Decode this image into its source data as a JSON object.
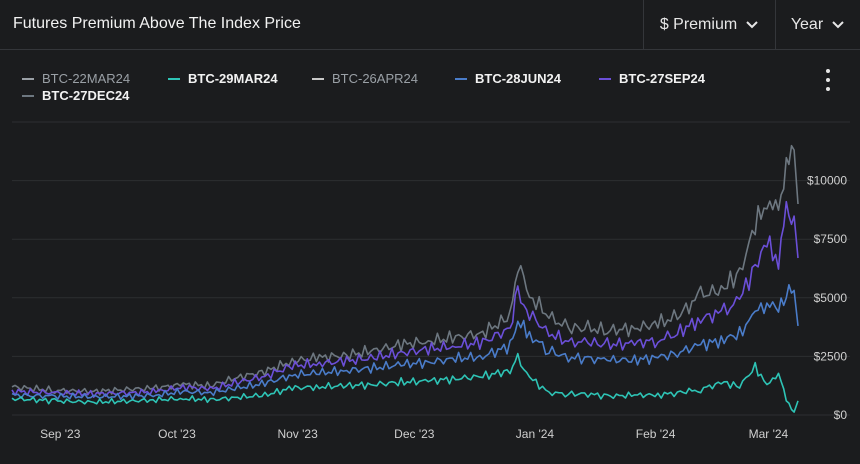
{
  "header": {
    "title": "Futures Premium Above The Index Price",
    "metric_select": "$ Premium",
    "range_select": "Year"
  },
  "legend": {
    "items": [
      {
        "label": "BTC-22MAR24",
        "color": "#9aa0a6",
        "bold": false
      },
      {
        "label": "BTC-29MAR24",
        "color": "#2ec4b6",
        "bold": true
      },
      {
        "label": "BTC-26APR24",
        "color": "#c8c8c8",
        "bold": false
      },
      {
        "label": "BTC-28JUN24",
        "color": "#4a7cc9",
        "bold": true
      },
      {
        "label": "BTC-27SEP24",
        "color": "#6b4fd8",
        "bold": true
      },
      {
        "label": "BTC-27DEC24",
        "color": "#6d7780",
        "bold": true
      }
    ]
  },
  "chart_data": {
    "type": "line",
    "x_axis": {
      "type": "date",
      "min": "2023-08-25",
      "max": "2024-03-14",
      "tick_labels": [
        "Sep '23",
        "Oct '23",
        "Nov '23",
        "Dec '23",
        "Jan '24",
        "Feb '24",
        "Mar '24"
      ],
      "tick_dates": [
        "2023-09-01",
        "2023-10-01",
        "2023-11-01",
        "2023-12-01",
        "2024-01-01",
        "2024-02-01",
        "2024-03-01"
      ]
    },
    "y_axis": {
      "min": 0,
      "max": 12500,
      "ticks": [
        0,
        2500,
        5000,
        7500,
        10000
      ],
      "tick_labels": [
        "$0",
        "$2500",
        "$5000",
        "$7500",
        "$10000"
      ],
      "position": "right",
      "grid": true
    },
    "series": [
      {
        "name": "BTC-27DEC24",
        "color": "#6d7780",
        "points": [
          [
            "2023-08-25",
            1200
          ],
          [
            "2023-09-05",
            1050
          ],
          [
            "2023-09-15",
            1000
          ],
          [
            "2023-09-25",
            1100
          ],
          [
            "2023-10-01",
            1150
          ],
          [
            "2023-10-08",
            1300
          ],
          [
            "2023-10-15",
            1250
          ],
          [
            "2023-10-22",
            1600
          ],
          [
            "2023-10-29",
            1850
          ],
          [
            "2023-11-05",
            2300
          ],
          [
            "2023-11-12",
            2450
          ],
          [
            "2023-11-19",
            2550
          ],
          [
            "2023-11-26",
            2750
          ],
          [
            "2023-12-03",
            3000
          ],
          [
            "2023-12-10",
            3150
          ],
          [
            "2023-12-17",
            3300
          ],
          [
            "2023-12-24",
            3500
          ],
          [
            "2023-12-31",
            4200
          ],
          [
            "2024-01-02",
            6500
          ],
          [
            "2024-01-05",
            5100
          ],
          [
            "2024-01-10",
            4200
          ],
          [
            "2024-01-15",
            3700
          ],
          [
            "2024-01-20",
            3700
          ],
          [
            "2024-01-25",
            3600
          ],
          [
            "2024-02-01",
            3700
          ],
          [
            "2024-02-07",
            3900
          ],
          [
            "2024-02-12",
            4200
          ],
          [
            "2024-02-18",
            5100
          ],
          [
            "2024-02-24",
            5400
          ],
          [
            "2024-02-28",
            6100
          ],
          [
            "2024-03-03",
            8000
          ],
          [
            "2024-03-06",
            9300
          ],
          [
            "2024-03-09",
            8400
          ],
          [
            "2024-03-11",
            11000
          ],
          [
            "2024-03-13",
            10700
          ],
          [
            "2024-03-14",
            9000
          ]
        ]
      },
      {
        "name": "BTC-27SEP24",
        "color": "#6b4fd8",
        "points": [
          [
            "2023-08-25",
            1000
          ],
          [
            "2023-09-05",
            950
          ],
          [
            "2023-09-15",
            900
          ],
          [
            "2023-09-25",
            950
          ],
          [
            "2023-10-01",
            1000
          ],
          [
            "2023-10-08",
            1200
          ],
          [
            "2023-10-15",
            1100
          ],
          [
            "2023-10-22",
            1400
          ],
          [
            "2023-10-29",
            1650
          ],
          [
            "2023-11-05",
            2100
          ],
          [
            "2023-11-12",
            2200
          ],
          [
            "2023-11-19",
            2300
          ],
          [
            "2023-11-26",
            2450
          ],
          [
            "2023-12-03",
            2650
          ],
          [
            "2023-12-10",
            2800
          ],
          [
            "2023-12-17",
            2950
          ],
          [
            "2023-12-24",
            3100
          ],
          [
            "2023-12-31",
            3700
          ],
          [
            "2024-01-02",
            5200
          ],
          [
            "2024-01-05",
            4300
          ],
          [
            "2024-01-10",
            3500
          ],
          [
            "2024-01-15",
            3100
          ],
          [
            "2024-01-20",
            3100
          ],
          [
            "2024-01-25",
            3000
          ],
          [
            "2024-02-01",
            3050
          ],
          [
            "2024-02-07",
            3200
          ],
          [
            "2024-02-12",
            3500
          ],
          [
            "2024-02-18",
            4100
          ],
          [
            "2024-02-24",
            4400
          ],
          [
            "2024-02-28",
            4900
          ],
          [
            "2024-03-03",
            6400
          ],
          [
            "2024-03-06",
            7300
          ],
          [
            "2024-03-09",
            6700
          ],
          [
            "2024-03-11",
            8700
          ],
          [
            "2024-03-13",
            8400
          ],
          [
            "2024-03-14",
            6700
          ]
        ]
      },
      {
        "name": "BTC-28JUN24",
        "color": "#4a7cc9",
        "points": [
          [
            "2023-08-25",
            850
          ],
          [
            "2023-09-05",
            800
          ],
          [
            "2023-09-15",
            780
          ],
          [
            "2023-09-25",
            800
          ],
          [
            "2023-10-01",
            850
          ],
          [
            "2023-10-08",
            1000
          ],
          [
            "2023-10-15",
            950
          ],
          [
            "2023-10-22",
            1150
          ],
          [
            "2023-10-29",
            1350
          ],
          [
            "2023-11-05",
            1700
          ],
          [
            "2023-11-12",
            1800
          ],
          [
            "2023-11-19",
            1900
          ],
          [
            "2023-11-26",
            2000
          ],
          [
            "2023-12-03",
            2150
          ],
          [
            "2023-12-10",
            2250
          ],
          [
            "2023-12-17",
            2400
          ],
          [
            "2023-12-24",
            2500
          ],
          [
            "2023-12-31",
            2950
          ],
          [
            "2024-01-02",
            4000
          ],
          [
            "2024-01-05",
            3400
          ],
          [
            "2024-01-10",
            2750
          ],
          [
            "2024-01-15",
            2450
          ],
          [
            "2024-01-20",
            2400
          ],
          [
            "2024-01-25",
            2350
          ],
          [
            "2024-02-01",
            2350
          ],
          [
            "2024-02-07",
            2450
          ],
          [
            "2024-02-12",
            2650
          ],
          [
            "2024-02-18",
            3000
          ],
          [
            "2024-02-24",
            3200
          ],
          [
            "2024-02-28",
            3500
          ],
          [
            "2024-03-03",
            4300
          ],
          [
            "2024-03-06",
            4900
          ],
          [
            "2024-03-09",
            4400
          ],
          [
            "2024-03-11",
            5400
          ],
          [
            "2024-03-13",
            5100
          ],
          [
            "2024-03-14",
            3800
          ]
        ]
      },
      {
        "name": "BTC-29MAR24",
        "color": "#2ec4b6",
        "points": [
          [
            "2023-08-25",
            700
          ],
          [
            "2023-09-05",
            600
          ],
          [
            "2023-09-15",
            550
          ],
          [
            "2023-09-25",
            600
          ],
          [
            "2023-10-01",
            650
          ],
          [
            "2023-10-08",
            700
          ],
          [
            "2023-10-15",
            650
          ],
          [
            "2023-10-22",
            750
          ],
          [
            "2023-10-29",
            850
          ],
          [
            "2023-11-05",
            1150
          ],
          [
            "2023-11-12",
            1200
          ],
          [
            "2023-11-19",
            1250
          ],
          [
            "2023-11-26",
            1300
          ],
          [
            "2023-12-03",
            1400
          ],
          [
            "2023-12-10",
            1450
          ],
          [
            "2023-12-17",
            1550
          ],
          [
            "2023-12-24",
            1650
          ],
          [
            "2023-12-31",
            1900
          ],
          [
            "2024-01-02",
            2400
          ],
          [
            "2024-01-05",
            1600
          ],
          [
            "2024-01-10",
            950
          ],
          [
            "2024-01-15",
            900
          ],
          [
            "2024-01-20",
            900
          ],
          [
            "2024-01-25",
            800
          ],
          [
            "2024-02-01",
            850
          ],
          [
            "2024-02-07",
            850
          ],
          [
            "2024-02-12",
            950
          ],
          [
            "2024-02-18",
            1100
          ],
          [
            "2024-02-24",
            1400
          ],
          [
            "2024-02-28",
            1200
          ],
          [
            "2024-03-03",
            2100
          ],
          [
            "2024-03-06",
            1200
          ],
          [
            "2024-03-09",
            1900
          ],
          [
            "2024-03-11",
            600
          ],
          [
            "2024-03-13",
            200
          ],
          [
            "2024-03-14",
            600
          ]
        ]
      }
    ]
  }
}
